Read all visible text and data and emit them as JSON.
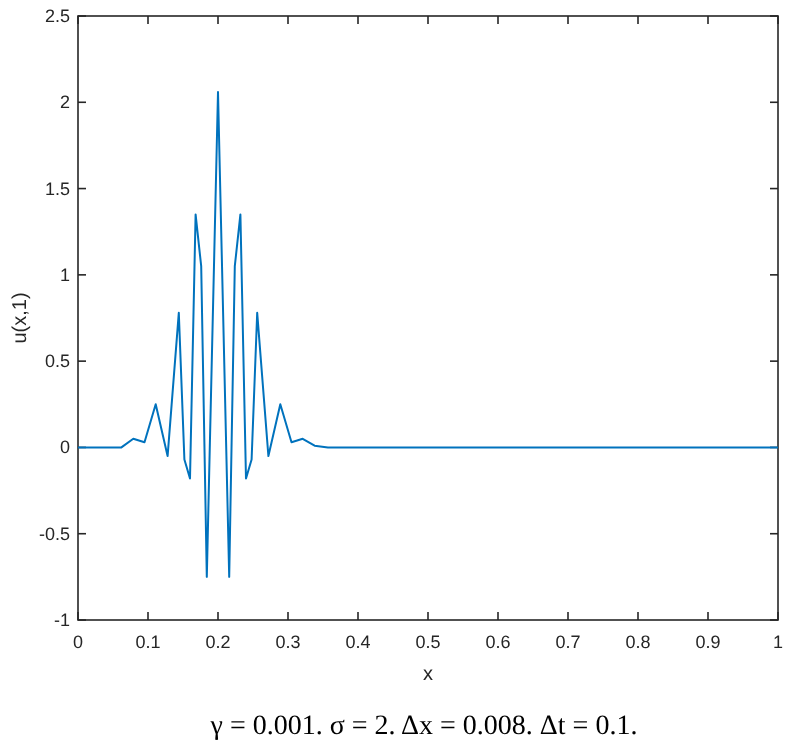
{
  "chart_data": {
    "type": "line",
    "xlabel": "x",
    "ylabel": "u(x,1)",
    "annotations": [
      "γ = 0.001. σ = 2. Δx = 0.008. Δt = 0.1."
    ],
    "xlim": [
      0,
      1
    ],
    "xticks": [
      0,
      0.1,
      0.2,
      0.3,
      0.4,
      0.5,
      0.6,
      0.7,
      0.8,
      0.9,
      1
    ],
    "ylim": [
      -1,
      2.5
    ],
    "yticks": [
      -1,
      -0.5,
      0,
      0.5,
      1,
      1.5,
      2,
      2.5
    ],
    "grid": false,
    "marker": "none",
    "line_style": "solid",
    "series": [
      {
        "color": "#0072bd",
        "x": [
          0,
          0.062,
          0.079,
          0.095,
          0.111,
          0.128,
          0.144,
          0.152,
          0.16,
          0.168,
          0.176,
          0.184,
          0.2,
          0.216,
          0.224,
          0.232,
          0.24,
          0.248,
          0.256,
          0.272,
          0.289,
          0.305,
          0.321,
          0.338,
          0.357,
          1
        ],
        "values": [
          0,
          0,
          0.05,
          0.03,
          0.25,
          -0.05,
          0.78,
          -0.07,
          -0.18,
          1.35,
          1.05,
          -0.75,
          2.06,
          -0.75,
          1.05,
          1.35,
          -0.18,
          -0.07,
          0.78,
          -0.05,
          0.25,
          0.03,
          0.05,
          0.01,
          0,
          0
        ]
      }
    ]
  }
}
